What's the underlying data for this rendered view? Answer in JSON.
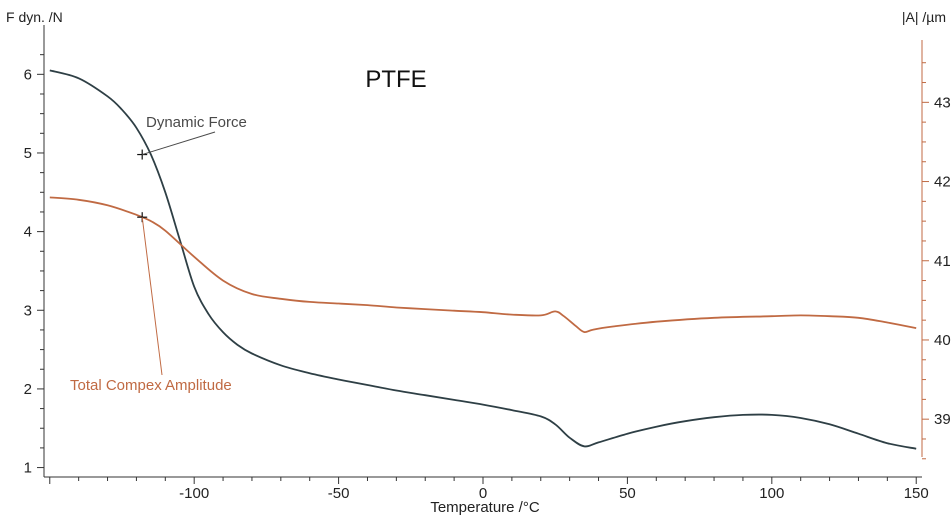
{
  "chart_data": {
    "type": "line",
    "title": "PTFE",
    "xlabel": "Temperature /°C",
    "ylabel_left": "F dyn. /N",
    "ylabel_right": "|A| /µm",
    "xlim": [
      -152,
      152
    ],
    "ylim_left": [
      0.88,
      6.5
    ],
    "ylim_right": [
      38.27,
      43.85
    ],
    "x_ticks": [
      -100,
      -50,
      0,
      50,
      100,
      150
    ],
    "y_left_ticks": [
      1,
      2,
      3,
      4,
      5,
      6
    ],
    "y_right_ticks": [
      39,
      40,
      41,
      42,
      43
    ],
    "grid": false,
    "colors": {
      "dynamic_force": "#2e3f45",
      "amplitude": "#c06a43",
      "right_axis": "#c06a43"
    },
    "series": [
      {
        "name": "Dynamic Force",
        "axis": "left",
        "x": [
          -150,
          -140,
          -130,
          -125,
          -120,
          -115,
          -110,
          -105,
          -100,
          -95,
          -90,
          -85,
          -80,
          -70,
          -60,
          -50,
          -40,
          -30,
          -20,
          -10,
          0,
          10,
          20,
          25,
          30,
          35,
          40,
          50,
          60,
          70,
          80,
          90,
          100,
          110,
          120,
          130,
          140,
          150
        ],
        "y": [
          6.05,
          5.95,
          5.72,
          5.55,
          5.32,
          4.98,
          4.5,
          3.9,
          3.3,
          2.95,
          2.72,
          2.56,
          2.45,
          2.3,
          2.2,
          2.12,
          2.05,
          1.98,
          1.92,
          1.86,
          1.8,
          1.73,
          1.65,
          1.55,
          1.38,
          1.27,
          1.32,
          1.43,
          1.52,
          1.59,
          1.64,
          1.67,
          1.67,
          1.63,
          1.55,
          1.43,
          1.31,
          1.24
        ]
      },
      {
        "name": "Total Compex Amplitude",
        "axis": "right",
        "x": [
          -150,
          -140,
          -130,
          -120,
          -115,
          -110,
          -100,
          -90,
          -80,
          -70,
          -60,
          -50,
          -40,
          -30,
          -20,
          -10,
          0,
          10,
          20,
          25,
          28,
          32,
          35,
          38,
          45,
          60,
          80,
          100,
          110,
          120,
          130,
          140,
          150
        ],
        "y": [
          41.8,
          41.77,
          41.7,
          41.58,
          41.5,
          41.38,
          41.05,
          40.75,
          40.58,
          40.52,
          40.48,
          40.46,
          40.44,
          40.41,
          40.39,
          40.37,
          40.35,
          40.32,
          40.31,
          40.36,
          40.3,
          40.18,
          40.1,
          40.13,
          40.17,
          40.23,
          40.28,
          40.3,
          40.31,
          40.3,
          40.28,
          40.22,
          40.15
        ]
      }
    ],
    "annotations": [
      {
        "text": "Dynamic Force",
        "series": "Dynamic Force",
        "x": -118,
        "y": 4.98
      },
      {
        "text": "Total Compex Amplitude",
        "series": "Total Compex Amplitude",
        "x": -118,
        "y": 41.55
      }
    ]
  }
}
